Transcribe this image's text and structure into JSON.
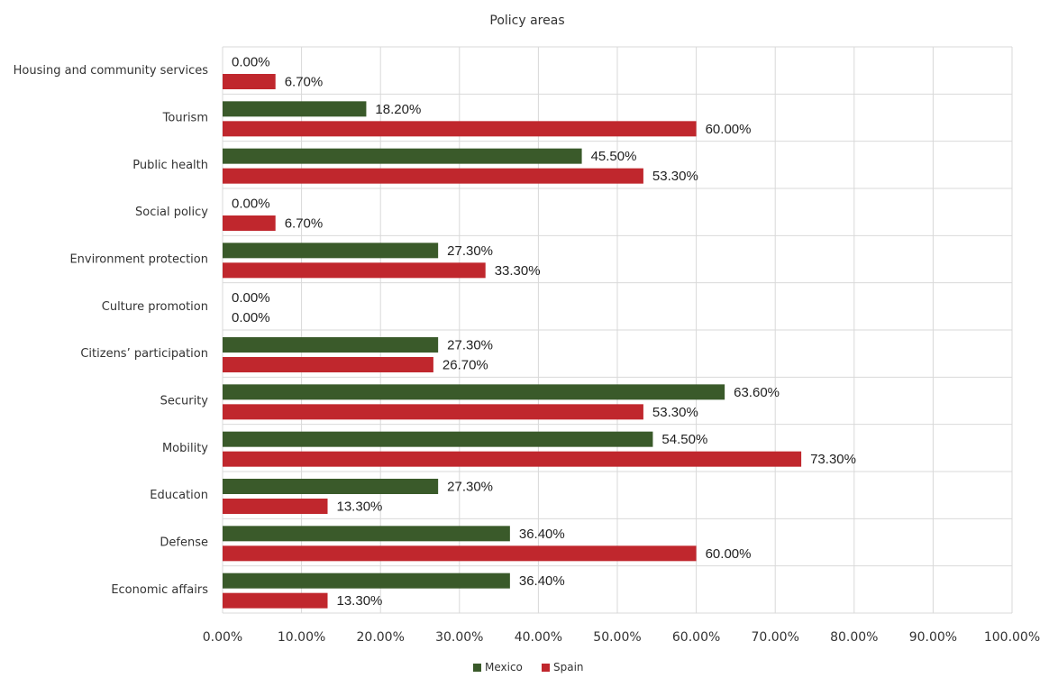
{
  "chart_data": {
    "type": "bar",
    "orientation": "horizontal",
    "title": "Policy areas",
    "xlabel": "",
    "ylabel": "",
    "xlim": [
      0,
      100
    ],
    "x_ticks": [
      "0.00%",
      "10.00%",
      "20.00%",
      "30.00%",
      "40.00%",
      "50.00%",
      "60.00%",
      "70.00%",
      "80.00%",
      "90.00%",
      "100.00%"
    ],
    "grid": true,
    "legend_position": "bottom",
    "categories": [
      "Housing and community services",
      "Tourism",
      "Public health",
      "Social policy",
      "Environment protection",
      "Culture promotion",
      "Citizens’ participation",
      "Security",
      "Mobility",
      "Education",
      "Defense",
      "Economic affairs"
    ],
    "series": [
      {
        "name": "Mexico",
        "color": "#3a5a2a",
        "values": [
          0.0,
          18.2,
          45.5,
          0.0,
          27.3,
          0.0,
          27.3,
          63.6,
          54.5,
          27.3,
          36.4,
          36.4
        ],
        "labels": [
          "0.00%",
          "18.20%",
          "45.50%",
          "0.00%",
          "27.30%",
          "0.00%",
          "27.30%",
          "63.60%",
          "54.50%",
          "27.30%",
          "36.40%",
          "36.40%"
        ]
      },
      {
        "name": "Spain",
        "color": "#c0272d",
        "values": [
          6.7,
          60.0,
          53.3,
          6.7,
          33.3,
          0.0,
          26.7,
          53.3,
          73.3,
          13.3,
          60.0,
          13.3
        ],
        "labels": [
          "6.70%",
          "60.00%",
          "53.30%",
          "6.70%",
          "33.30%",
          "0.00%",
          "26.70%",
          "53.30%",
          "73.30%",
          "13.30%",
          "60.00%",
          "13.30%"
        ]
      }
    ]
  }
}
